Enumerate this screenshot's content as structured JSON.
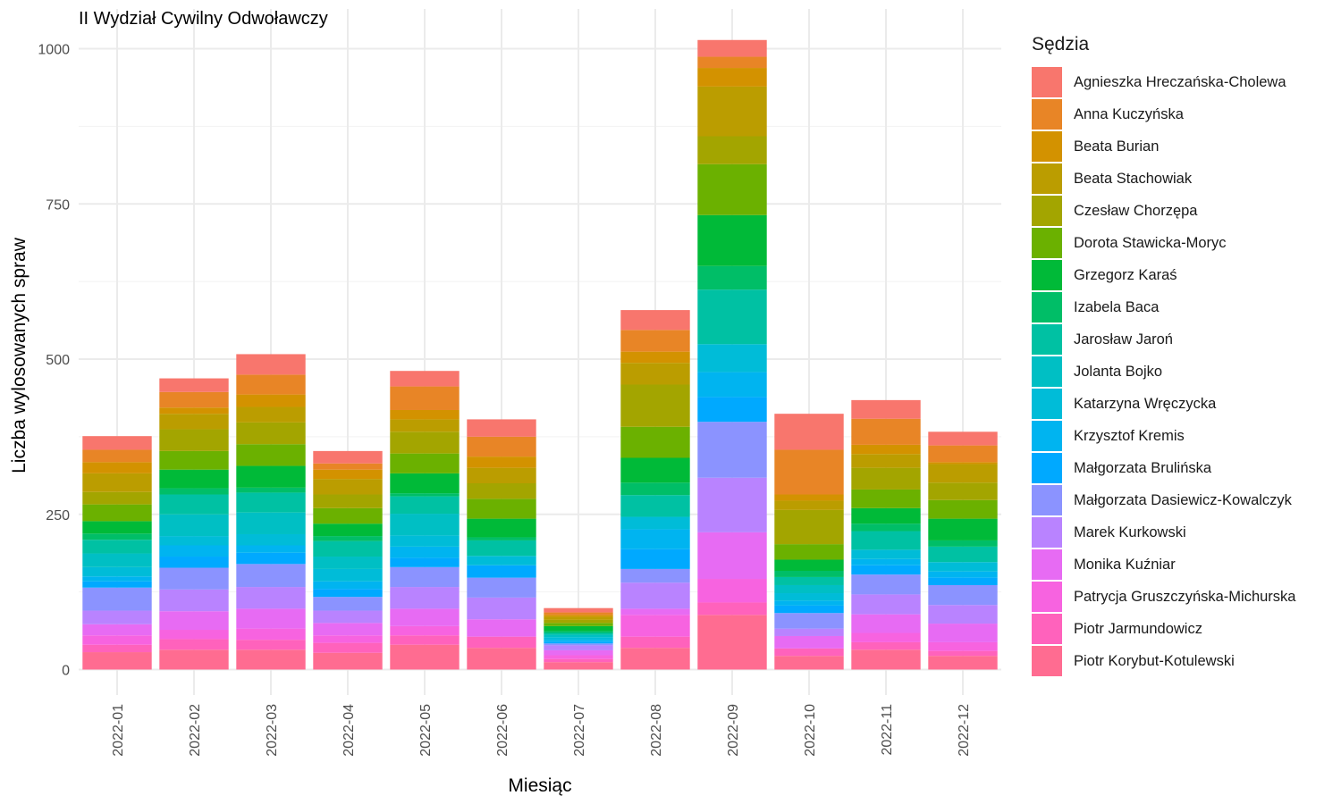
{
  "chart_data": {
    "type": "bar",
    "stacked": true,
    "title": "II Wydział Cywilny Odwoławczy",
    "xlabel": "Miesiąc",
    "ylabel": "Liczba wylosowanych spraw",
    "ylim": [
      -40,
      1040
    ],
    "yticks": [
      0,
      250,
      500,
      750,
      1000
    ],
    "grid": true,
    "legend_title": "Sędzia",
    "legend_position": "right",
    "categories": [
      "2022-01",
      "2022-02",
      "2022-03",
      "2022-04",
      "2022-05",
      "2022-06",
      "2022-07",
      "2022-08",
      "2022-09",
      "2022-10",
      "2022-11",
      "2022-12"
    ],
    "series": [
      {
        "name": "Piotr Korybut-Kotulewski",
        "color": "#FF6C91",
        "values": [
          28,
          32,
          32,
          27,
          40,
          35,
          12,
          35,
          88,
          22,
          32,
          22
        ]
      },
      {
        "name": "Piotr Jarmundowicz",
        "color": "#FF62BC",
        "values": [
          12,
          17,
          16,
          16,
          15,
          18,
          5,
          18,
          20,
          12,
          12,
          8
        ]
      },
      {
        "name": "Patrycja Gruszczyńska-Michurska",
        "color": "#F763E0",
        "values": [
          15,
          15,
          18,
          12,
          15,
          0,
          6,
          35,
          38,
          0,
          15,
          14
        ]
      },
      {
        "name": "Monika Kuźniar",
        "color": "#E76BF3",
        "values": [
          18,
          30,
          32,
          20,
          28,
          28,
          8,
          10,
          75,
          20,
          30,
          30
        ]
      },
      {
        "name": "Marek Kurkowski",
        "color": "#D39200",
        "values": [
          0,
          0,
          0,
          0,
          0,
          0,
          0,
          0,
          0,
          0,
          0,
          0
        ]
      },
      {
        "name": "Marek Kurkowski",
        "color": "#B983FF",
        "values": [
          22,
          35,
          35,
          20,
          35,
          35,
          8,
          42,
          88,
          12,
          32,
          30
        ]
      },
      {
        "name": "Małgorzata Dasiewicz-Kowalczyk",
        "color": "#8B93FF",
        "values": [
          37,
          35,
          37,
          22,
          32,
          32,
          3,
          22,
          90,
          25,
          32,
          32
        ]
      },
      {
        "name": "Małgorzata Brulińska",
        "color": "#00A9FF",
        "values": [
          10,
          18,
          18,
          13,
          15,
          20,
          3,
          32,
          40,
          12,
          15,
          12
        ]
      },
      {
        "name": "Krzysztof Kremis",
        "color": "#00B4F0",
        "values": [
          8,
          18,
          12,
          12,
          18,
          0,
          3,
          32,
          40,
          8,
          10,
          10
        ]
      },
      {
        "name": "Katarzyna Wręczycka",
        "color": "#00BCD8",
        "values": [
          15,
          15,
          18,
          20,
          18,
          15,
          4,
          20,
          45,
          12,
          15,
          15
        ]
      },
      {
        "name": "Jolanta Bojko",
        "color": "#00BFC4",
        "values": [
          22,
          35,
          35,
          20,
          35,
          0,
          4,
          0,
          0,
          13,
          0,
          0
        ]
      },
      {
        "name": "Jarosław Jaroń",
        "color": "#00C1A3",
        "values": [
          22,
          32,
          32,
          25,
          28,
          25,
          3,
          35,
          88,
          13,
          30,
          25
        ]
      },
      {
        "name": "Izabela Baca",
        "color": "#00BE67",
        "values": [
          10,
          10,
          8,
          8,
          5,
          5,
          3,
          20,
          38,
          10,
          12,
          10
        ]
      },
      {
        "name": "Grzegorz Karaś",
        "color": "#00BA38",
        "values": [
          20,
          30,
          35,
          20,
          32,
          30,
          8,
          40,
          82,
          18,
          25,
          35
        ]
      },
      {
        "name": "Dorota Stawicka-Moryc",
        "color": "#6BB100",
        "values": [
          27,
          30,
          35,
          25,
          32,
          32,
          5,
          50,
          82,
          25,
          30,
          30
        ]
      },
      {
        "name": "Czesław Chorzępa",
        "color": "#A3A500",
        "values": [
          20,
          35,
          35,
          22,
          35,
          25,
          5,
          68,
          45,
          55,
          35,
          28
        ]
      },
      {
        "name": "Beata Stachowiak",
        "color": "#BB9D00",
        "values": [
          30,
          25,
          25,
          25,
          20,
          25,
          5,
          35,
          80,
          15,
          22,
          30
        ]
      },
      {
        "name": "Beata Burian",
        "color": "#D39200",
        "values": [
          18,
          10,
          20,
          15,
          15,
          18,
          3,
          18,
          30,
          10,
          15,
          3
        ]
      },
      {
        "name": "Anna Kuczyńska",
        "color": "#E88526",
        "values": [
          20,
          25,
          32,
          10,
          38,
          32,
          4,
          35,
          18,
          72,
          42,
          27
        ]
      },
      {
        "name": "Agnieszka Hreczańska-Cholewa",
        "color": "#F8766D",
        "values": [
          22,
          22,
          33,
          20,
          25,
          28,
          7,
          32,
          27,
          58,
          30,
          22
        ]
      }
    ],
    "legend": [
      {
        "name": "Agnieszka Hreczańska-Cholewa",
        "color": "#F8766D"
      },
      {
        "name": "Anna Kuczyńska",
        "color": "#E88526"
      },
      {
        "name": "Beata Burian",
        "color": "#D39200"
      },
      {
        "name": "Beata Stachowiak",
        "color": "#BB9D00"
      },
      {
        "name": "Czesław Chorzępa",
        "color": "#A3A500"
      },
      {
        "name": "Dorota Stawicka-Moryc",
        "color": "#6BB100"
      },
      {
        "name": "Grzegorz Karaś",
        "color": "#00BA38"
      },
      {
        "name": "Izabela Baca",
        "color": "#00BE67"
      },
      {
        "name": "Jarosław Jaroń",
        "color": "#00C1A3"
      },
      {
        "name": "Jolanta Bojko",
        "color": "#00BFC4"
      },
      {
        "name": "Katarzyna Wręczycka",
        "color": "#00BCD8"
      },
      {
        "name": "Krzysztof Kremis",
        "color": "#00B4F0"
      },
      {
        "name": "Małgorzata Brulińska",
        "color": "#00A9FF"
      },
      {
        "name": "Małgorzata Dasiewicz-Kowalczyk",
        "color": "#8B93FF"
      },
      {
        "name": "Marek Kurkowski",
        "color": "#B983FF"
      },
      {
        "name": "Monika Kuźniar",
        "color": "#E76BF3"
      },
      {
        "name": "Patrycja Gruszczyńska-Michurska",
        "color": "#F763E0"
      },
      {
        "name": "Piotr Jarmundowicz",
        "color": "#FF62BC"
      },
      {
        "name": "Piotr Korybut-Kotulewski",
        "color": "#FF6C91"
      }
    ]
  }
}
